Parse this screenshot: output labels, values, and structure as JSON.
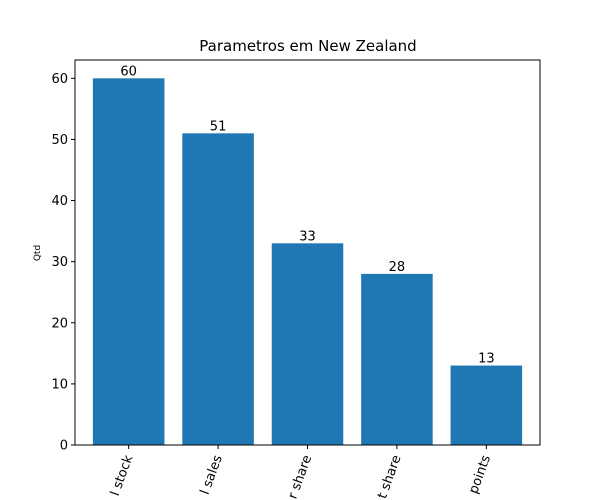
{
  "chart_data": {
    "type": "bar",
    "title": "Parametros em New Zealand",
    "xlabel": "",
    "ylabel": "Qtd",
    "categories": [
      "l stock",
      "l sales",
      "r share",
      "t share",
      "points"
    ],
    "values": [
      60,
      51,
      33,
      28,
      13
    ],
    "ylim": [
      0,
      63
    ],
    "yticks": [
      0,
      10,
      20,
      30,
      40,
      50,
      60
    ],
    "grid": false,
    "bar_color": "#1f77b4"
  }
}
